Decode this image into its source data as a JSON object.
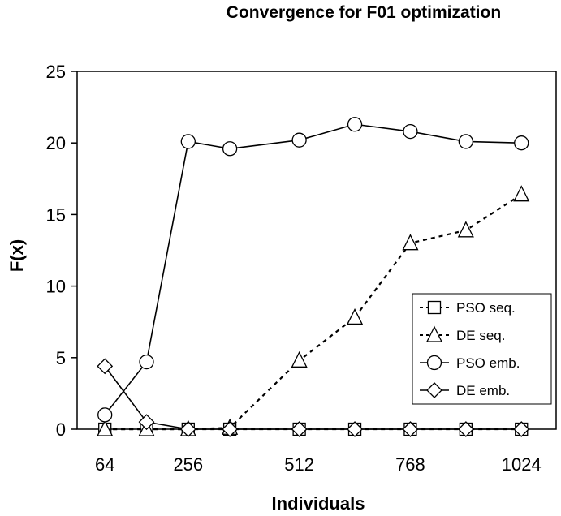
{
  "chart_data": {
    "type": "line",
    "title": "Convergence for F01 optimization",
    "xlabel": "Individuals",
    "ylabel": "F(x)",
    "x": [
      64,
      160,
      256,
      352,
      512,
      640,
      768,
      896,
      1024
    ],
    "x_tick_labels": [
      "64",
      "256",
      "512",
      "768",
      "1024"
    ],
    "x_ticks": [
      64,
      256,
      512,
      768,
      1024
    ],
    "ylim": [
      0,
      25
    ],
    "y_ticks": [
      0,
      5,
      10,
      15,
      20,
      25
    ],
    "grid": false,
    "legend_position": "bottom-right",
    "series": [
      {
        "name": "PSO seq.",
        "marker": "square",
        "line": "dotted",
        "values": [
          0,
          0,
          0,
          0,
          0,
          0,
          0,
          0,
          0
        ]
      },
      {
        "name": "DE seq.",
        "marker": "triangle",
        "line": "dotted",
        "values": [
          0,
          0,
          0,
          0.1,
          4.8,
          7.8,
          13.0,
          13.9,
          16.4
        ]
      },
      {
        "name": "PSO emb.",
        "marker": "circle",
        "line": "solid",
        "values": [
          1.0,
          4.7,
          20.1,
          19.6,
          20.2,
          21.3,
          20.8,
          20.1,
          20.0
        ]
      },
      {
        "name": "DE emb.",
        "marker": "diamond",
        "line": "solid",
        "values": [
          4.4,
          0.5,
          0,
          0,
          0,
          0,
          0,
          0,
          0
        ]
      }
    ]
  }
}
